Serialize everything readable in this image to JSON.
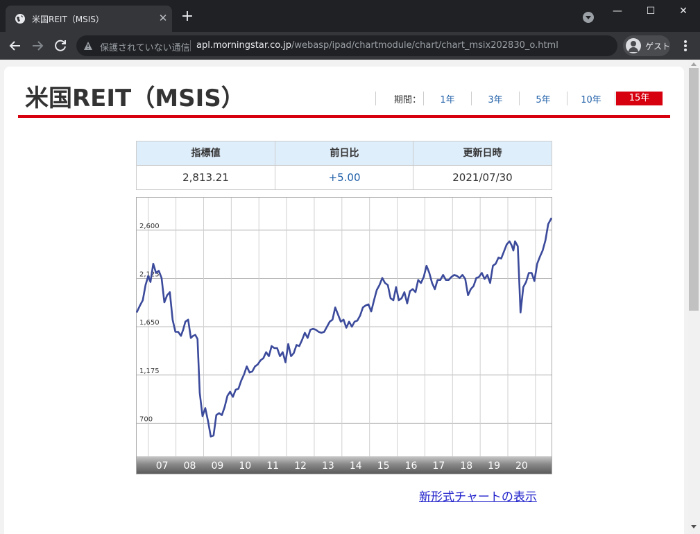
{
  "browser": {
    "tab_title": "米国REIT（MSIS）",
    "tab_close": "✕",
    "new_tab": "+",
    "security_label": "保護されていない通信",
    "url_host": "apl.morningstar.co.jp",
    "url_path": "/webasp/ipad/chartmodule/chart/chart_msix202830_o.html",
    "profile_name": "ゲスト",
    "window_minimize": "—",
    "window_maximize": "☐",
    "window_close": "✕"
  },
  "page": {
    "title": "米国REIT（MSIS）",
    "period_label": "期間：",
    "periods": [
      "1年",
      "3年",
      "5年",
      "10年",
      "15年"
    ],
    "active_period": "15年",
    "quote": {
      "headers": [
        "指標値",
        "前日比",
        "更新日時"
      ],
      "value": "2,813.21",
      "change": "+5.00",
      "updated": "2021/07/30"
    },
    "new_chart_link": "新形式チャートの表示"
  },
  "colors": {
    "accent_red": "#d7000f",
    "line_color": "#3b4a9b",
    "link_blue": "#1f5fa8",
    "table_header_bg": "#dfeefb"
  },
  "chart_data": {
    "type": "line",
    "title": "",
    "xlabel": "",
    "ylabel": "",
    "x_tick_labels": [
      "07",
      "08",
      "09",
      "10",
      "11",
      "12",
      "13",
      "14",
      "15",
      "16",
      "17",
      "18",
      "19",
      "20"
    ],
    "y_tick_labels": [
      "2,600",
      "2,125",
      "1,650",
      "1,175",
      "700"
    ],
    "y_ticks": [
      2600,
      2125,
      1650,
      1175,
      700
    ],
    "ylim": [
      375,
      2920
    ],
    "xlim": [
      2006.58,
      2021.58
    ],
    "grid": true,
    "series": [
      {
        "name": "",
        "x": [
          2006.58,
          2006.7,
          2006.8,
          2006.9,
          2007.0,
          2007.08,
          2007.18,
          2007.28,
          2007.38,
          2007.48,
          2007.58,
          2007.68,
          2007.78,
          2007.88,
          2007.98,
          2008.08,
          2008.18,
          2008.26,
          2008.34,
          2008.44,
          2008.54,
          2008.62,
          2008.7,
          2008.78,
          2008.86,
          2008.96,
          2009.06,
          2009.16,
          2009.26,
          2009.36,
          2009.46,
          2009.56,
          2009.66,
          2009.76,
          2009.86,
          2009.96,
          2010.06,
          2010.16,
          2010.26,
          2010.36,
          2010.46,
          2010.56,
          2010.66,
          2010.76,
          2010.86,
          2010.96,
          2011.06,
          2011.16,
          2011.26,
          2011.36,
          2011.46,
          2011.56,
          2011.66,
          2011.76,
          2011.86,
          2011.96,
          2012.06,
          2012.16,
          2012.26,
          2012.36,
          2012.46,
          2012.56,
          2012.66,
          2012.76,
          2012.86,
          2012.96,
          2013.06,
          2013.16,
          2013.26,
          2013.36,
          2013.46,
          2013.56,
          2013.66,
          2013.76,
          2013.86,
          2013.96,
          2014.06,
          2014.16,
          2014.26,
          2014.36,
          2014.46,
          2014.56,
          2014.66,
          2014.76,
          2014.86,
          2014.96,
          2015.06,
          2015.16,
          2015.26,
          2015.36,
          2015.46,
          2015.56,
          2015.66,
          2015.76,
          2015.86,
          2015.96,
          2016.06,
          2016.16,
          2016.26,
          2016.36,
          2016.46,
          2016.56,
          2016.66,
          2016.76,
          2016.86,
          2016.96,
          2017.06,
          2017.16,
          2017.26,
          2017.36,
          2017.46,
          2017.56,
          2017.66,
          2017.76,
          2017.86,
          2017.96,
          2018.06,
          2018.16,
          2018.26,
          2018.36,
          2018.46,
          2018.56,
          2018.66,
          2018.76,
          2018.86,
          2018.96,
          2019.06,
          2019.16,
          2019.26,
          2019.36,
          2019.46,
          2019.56,
          2019.66,
          2019.76,
          2019.86,
          2019.96,
          2020.06,
          2020.14,
          2020.2,
          2020.26,
          2020.36,
          2020.46,
          2020.56,
          2020.66,
          2020.76,
          2020.86,
          2020.96,
          2021.06,
          2021.16,
          2021.26,
          2021.36,
          2021.46,
          2021.58
        ],
        "values": [
          1790,
          1860,
          1910,
          2060,
          2150,
          2090,
          2270,
          2180,
          2200,
          2130,
          1890,
          1960,
          1990,
          1720,
          1600,
          1600,
          1560,
          1620,
          1700,
          1720,
          1540,
          1560,
          1570,
          1530,
          1000,
          770,
          850,
          720,
          570,
          580,
          780,
          800,
          780,
          860,
          970,
          1010,
          960,
          1030,
          1040,
          1120,
          1180,
          1260,
          1200,
          1210,
          1260,
          1280,
          1320,
          1340,
          1400,
          1360,
          1460,
          1440,
          1440,
          1360,
          1400,
          1300,
          1480,
          1360,
          1390,
          1470,
          1460,
          1520,
          1590,
          1540,
          1620,
          1630,
          1620,
          1600,
          1590,
          1600,
          1650,
          1700,
          1720,
          1840,
          1770,
          1700,
          1720,
          1640,
          1700,
          1650,
          1700,
          1710,
          1760,
          1840,
          1860,
          1870,
          1800,
          1910,
          2010,
          2060,
          2130,
          2080,
          2060,
          1930,
          1910,
          2040,
          1910,
          1930,
          1990,
          1880,
          2000,
          2020,
          1990,
          2110,
          2080,
          2140,
          2250,
          2180,
          2080,
          2020,
          2110,
          2110,
          2160,
          2110,
          2110,
          2140,
          2160,
          2150,
          2130,
          2160,
          2120,
          1960,
          2020,
          2050,
          2130,
          2140,
          2180,
          2120,
          2160,
          2080,
          2250,
          2270,
          2330,
          2320,
          2390,
          2460,
          2490,
          2450,
          2400,
          2490,
          2440,
          1790,
          2040,
          2090,
          2180,
          2180,
          2100,
          2270,
          2340,
          2400,
          2500,
          2660,
          2720
        ]
      }
    ]
  }
}
